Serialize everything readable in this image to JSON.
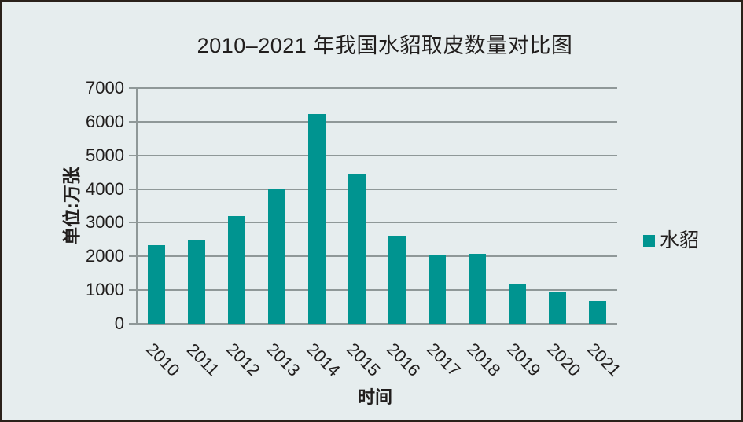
{
  "page": {
    "background_color": "#e6edee",
    "border_color": "#2a211a",
    "text_color": "#211e1d"
  },
  "chart_data": {
    "type": "bar",
    "title": "2010–2021 年我国水貂取皮数量对比图",
    "categories": [
      "2010",
      "2011",
      "2012",
      "2013",
      "2014",
      "2015",
      "2016",
      "2017",
      "2018",
      "2019",
      "2020",
      "2021"
    ],
    "series": [
      {
        "name": "水貂",
        "values": [
          2330,
          2470,
          3200,
          4000,
          6230,
          4440,
          2620,
          2050,
          2070,
          1170,
          930,
          680
        ],
        "color": "#009490"
      }
    ],
    "xlabel": "时间",
    "ylabel": "单位:万张",
    "ylim": [
      0,
      7000
    ],
    "yticks": [
      0,
      1000,
      2000,
      3000,
      4000,
      5000,
      6000,
      7000
    ],
    "grid": true,
    "legend_position": "right",
    "gridline_color": "#8f9898",
    "bar_color": "#009490"
  }
}
